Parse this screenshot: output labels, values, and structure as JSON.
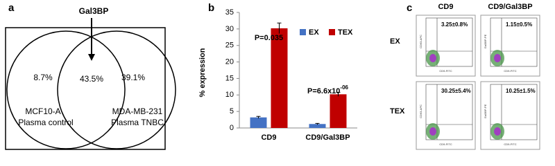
{
  "panel_a": {
    "label": "a",
    "pointer": "Gal3BP",
    "left_value": "8.7%",
    "overlap_value": "43.5%",
    "right_value": "39.1%",
    "left_lines": [
      "MCF10-A",
      "Plasma control"
    ],
    "right_lines": [
      "MDA-MB-231",
      "Plasma TNBC"
    ]
  },
  "chart_data": {
    "type": "bar",
    "label": "b",
    "y_label": "% expression",
    "categories": [
      "CD9",
      "CD9/Gal3BP"
    ],
    "series": [
      {
        "name": "EX",
        "color": "#4472c4",
        "values": [
          3.2,
          1.2
        ],
        "errors": [
          0.3,
          0.2
        ]
      },
      {
        "name": "TEX",
        "color": "#c00000",
        "values": [
          30.2,
          10.2
        ],
        "errors": [
          1.6,
          0.6
        ]
      }
    ],
    "ylim": [
      0,
      35
    ],
    "yticks": [
      0,
      5,
      10,
      15,
      20,
      25,
      30,
      35
    ],
    "annotations": [
      {
        "text": "P=0.035"
      },
      {
        "text": "P=6.6x10",
        "sup": "-06"
      }
    ]
  },
  "panel_c": {
    "label": "c",
    "columns": [
      "CD9",
      "CD9/Gal3BP"
    ],
    "rows": [
      "EX",
      "TEX"
    ],
    "plots": [
      {
        "value": "3.25±0.8%",
        "x_label": "CD9-FITC",
        "y_label": "CD63-APC"
      },
      {
        "value": "1.15±0.5%",
        "x_label": "CD9-FITC",
        "y_label": "Gal3BP-PE"
      },
      {
        "value": "30.25±5.4%",
        "x_label": "CD9-FITC",
        "y_label": "CD63-APC"
      },
      {
        "value": "10.25±1.5%",
        "x_label": "CD9-FITC",
        "y_label": "Gal3BP-PE"
      }
    ]
  }
}
